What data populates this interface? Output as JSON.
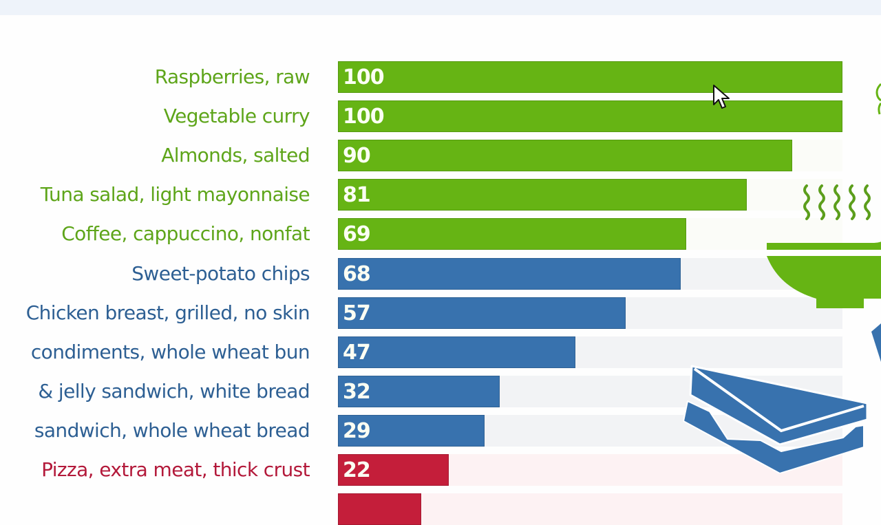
{
  "colors": {
    "healthy": "#66b414",
    "moderate": "#3872ae",
    "unhealthy": "#c41e3a",
    "healthy_label": "#5ea51a",
    "moderate_label": "#2d5f93",
    "unhealthy_label": "#b3193a",
    "track_healthy": "#fbfcf8",
    "track_moderate": "#f2f3f5",
    "track_unhealthy": "#fdf2f3"
  },
  "chart_data": {
    "type": "bar",
    "orientation": "horizontal",
    "title": "",
    "xlabel": "",
    "ylabel": "",
    "xlim": [
      0,
      100
    ],
    "grid": false,
    "legend": null,
    "categories": [
      "Raspberries, raw",
      "Vegetable curry",
      "Almonds, salted",
      "Tuna salad, light mayonnaise",
      "Coffee, cappuccino, nonfat",
      "Sweet-potato chips",
      "Chicken breast, grilled, no skin",
      "condiments, whole wheat bun",
      "& jelly sandwich, white bread",
      "sandwich, whole wheat bread",
      "Pizza, extra meat, thick crust"
    ],
    "values": [
      100,
      100,
      90,
      81,
      69,
      68,
      57,
      47,
      32,
      29,
      22
    ],
    "bar_groups": [
      "healthy",
      "healthy",
      "healthy",
      "healthy",
      "healthy",
      "moderate",
      "moderate",
      "moderate",
      "moderate",
      "moderate",
      "unhealthy"
    ],
    "annotations": "Values printed inside the left end of each bar; labels partially cut off at left edge of screenshot; an additional red bar is partially visible at the bottom edge"
  },
  "rows": [
    {
      "label": "Raspberries, raw",
      "value": "100",
      "pct": 100,
      "group": "healthy"
    },
    {
      "label": "Vegetable curry",
      "value": "100",
      "pct": 100,
      "group": "healthy"
    },
    {
      "label": "Almonds, salted",
      "value": "90",
      "pct": 90,
      "group": "healthy"
    },
    {
      "label": "Tuna salad, light mayonnaise",
      "value": "81",
      "pct": 81,
      "group": "healthy"
    },
    {
      "label": "Coffee, cappuccino, nonfat",
      "value": "69",
      "pct": 69,
      "group": "healthy"
    },
    {
      "label": "Sweet-potato chips",
      "value": "68",
      "pct": 68,
      "group": "moderate"
    },
    {
      "label": "Chicken breast, grilled, no skin",
      "value": "57",
      "pct": 57,
      "group": "moderate"
    },
    {
      "label": "condiments, whole wheat bun",
      "value": "47",
      "pct": 47,
      "group": "moderate"
    },
    {
      "label": "& jelly sandwich, white bread",
      "value": "32",
      "pct": 32,
      "group": "moderate"
    },
    {
      "label": "sandwich, whole wheat bread",
      "value": "29",
      "pct": 29,
      "group": "moderate"
    },
    {
      "label": "Pizza, extra meat, thick crust",
      "value": "22",
      "pct": 22,
      "group": "unhealthy"
    },
    {
      "label": "",
      "value": "",
      "pct": 16.5,
      "group": "unhealthy"
    }
  ],
  "icons": {
    "bowl": "steaming-bowl-icon",
    "sandwich": "sandwich-icon",
    "cursor": "mouse-pointer"
  }
}
